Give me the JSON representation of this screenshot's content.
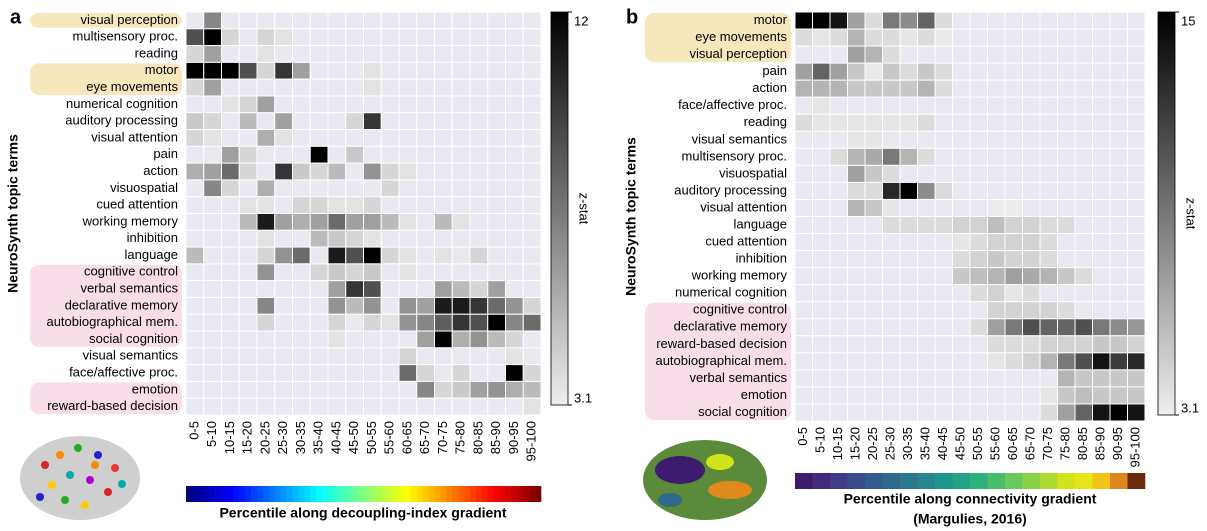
{
  "chart_data": [
    {
      "type": "heatmap",
      "panel": "a",
      "ylabel": "NeuroSynth topic terms",
      "xlabel_lines": [
        "Percentile along decoupling-index gradient"
      ],
      "categories": [
        "0-5",
        "5-10",
        "10-15",
        "15-20",
        "20-25",
        "25-30",
        "30-35",
        "35-40",
        "40-45",
        "45-50",
        "50-55",
        "55-60",
        "60-65",
        "65-70",
        "70-75",
        "75-80",
        "80-85",
        "85-90",
        "90-95",
        "95-100"
      ],
      "rows": [
        "visual perception",
        "multisensory proc.",
        "reading",
        "motor",
        "eye movements",
        "numerical cognition",
        "auditory processing",
        "visual attention",
        "pain",
        "action",
        "visuospatial",
        "cued attention",
        "working memory",
        "inhibition",
        "language",
        "cognitive control",
        "verbal semantics",
        "declarative memory",
        "autobiographical mem.",
        "social cognition",
        "visual semantics",
        "face/affective proc.",
        "emotion",
        "reward-based decision"
      ],
      "values": [
        [
          null,
          7,
          null,
          null,
          null,
          null,
          null,
          null,
          null,
          null,
          null,
          null,
          null,
          null,
          null,
          null,
          null,
          null,
          null,
          null
        ],
        [
          9,
          12,
          4,
          null,
          4,
          3.5,
          null,
          null,
          null,
          null,
          null,
          null,
          null,
          null,
          null,
          null,
          null,
          null,
          null,
          null
        ],
        [
          4,
          6,
          null,
          null,
          3.5,
          null,
          null,
          null,
          null,
          null,
          null,
          null,
          null,
          null,
          null,
          null,
          null,
          null,
          null,
          null
        ],
        [
          12,
          12,
          12,
          9,
          4,
          10,
          6,
          null,
          null,
          null,
          3.5,
          null,
          null,
          null,
          null,
          null,
          null,
          null,
          null,
          null
        ],
        [
          4,
          6,
          null,
          null,
          null,
          null,
          null,
          null,
          null,
          null,
          3.5,
          null,
          null,
          null,
          null,
          null,
          null,
          null,
          null,
          null
        ],
        [
          null,
          null,
          3.5,
          4,
          6,
          null,
          null,
          null,
          null,
          null,
          null,
          null,
          null,
          null,
          null,
          null,
          null,
          null,
          null,
          null
        ],
        [
          4.5,
          4,
          null,
          5,
          null,
          6,
          null,
          null,
          null,
          4,
          10,
          null,
          null,
          null,
          null,
          null,
          null,
          null,
          null,
          null
        ],
        [
          4,
          3.5,
          null,
          null,
          5.5,
          3.5,
          null,
          null,
          null,
          null,
          null,
          null,
          null,
          null,
          null,
          null,
          null,
          null,
          null,
          null
        ],
        [
          null,
          null,
          6,
          4,
          null,
          null,
          null,
          12,
          null,
          4.5,
          null,
          null,
          null,
          null,
          null,
          null,
          null,
          null,
          null,
          null
        ],
        [
          5.5,
          6,
          8,
          4,
          null,
          10,
          4.5,
          4,
          5,
          null,
          6.5,
          4,
          3.5,
          null,
          null,
          null,
          null,
          null,
          null,
          null
        ],
        [
          null,
          7,
          4,
          null,
          5.5,
          null,
          null,
          null,
          null,
          null,
          null,
          4,
          null,
          null,
          null,
          null,
          null,
          null,
          null,
          null
        ],
        [
          null,
          null,
          null,
          3.5,
          3.5,
          null,
          4,
          4,
          3.5,
          3.5,
          4,
          null,
          null,
          null,
          null,
          null,
          null,
          null,
          null,
          null
        ],
        [
          null,
          null,
          null,
          5,
          11,
          6,
          5.5,
          6,
          8,
          6,
          6,
          5,
          3.5,
          null,
          5,
          3.5,
          null,
          null,
          null,
          null
        ],
        [
          null,
          null,
          null,
          null,
          3.5,
          null,
          null,
          5,
          4.5,
          4,
          3.5,
          null,
          null,
          null,
          null,
          null,
          null,
          null,
          null,
          null
        ],
        [
          5,
          null,
          null,
          null,
          4,
          6.5,
          8,
          null,
          11,
          9,
          12,
          4,
          3.5,
          null,
          3.5,
          null,
          4,
          null,
          null,
          null
        ],
        [
          null,
          null,
          null,
          null,
          6.5,
          null,
          null,
          4,
          4.5,
          4,
          4.5,
          null,
          3.5,
          null,
          null,
          null,
          null,
          null,
          null,
          null
        ],
        [
          null,
          null,
          null,
          null,
          null,
          null,
          null,
          null,
          6,
          10,
          9,
          null,
          null,
          null,
          6,
          5,
          4,
          6,
          null,
          null
        ],
        [
          null,
          null,
          null,
          null,
          7,
          null,
          null,
          null,
          6.5,
          5,
          6.5,
          null,
          6.5,
          6,
          11,
          11,
          10,
          8,
          6.5,
          4
        ],
        [
          null,
          null,
          null,
          null,
          4,
          null,
          null,
          null,
          4,
          null,
          4,
          3.5,
          6.5,
          7,
          8.5,
          10,
          9,
          12,
          7,
          8
        ],
        [
          null,
          null,
          null,
          null,
          null,
          null,
          null,
          null,
          3.5,
          null,
          null,
          null,
          null,
          6,
          12,
          5.5,
          6.5,
          5,
          4,
          null
        ],
        [
          null,
          null,
          null,
          null,
          null,
          null,
          null,
          null,
          null,
          null,
          null,
          null,
          4,
          null,
          null,
          null,
          null,
          null,
          3.5,
          null
        ],
        [
          null,
          null,
          null,
          null,
          null,
          null,
          null,
          null,
          null,
          null,
          null,
          null,
          8,
          4,
          null,
          4,
          null,
          null,
          12,
          4
        ],
        [
          null,
          null,
          null,
          null,
          null,
          null,
          null,
          null,
          null,
          null,
          null,
          null,
          null,
          7,
          4,
          4.5,
          6,
          6.5,
          5.5,
          5
        ],
        [
          null,
          null,
          null,
          null,
          null,
          null,
          null,
          null,
          null,
          null,
          null,
          null,
          null,
          null,
          null,
          null,
          null,
          null,
          null,
          3.5
        ]
      ],
      "colorbar": {
        "label": "z-stat",
        "lim": [
          3.1,
          12
        ],
        "ticks": [
          12,
          3.1
        ]
      },
      "empty_color": "#e9e9f2",
      "gradient": "jet"
    },
    {
      "type": "heatmap",
      "panel": "b",
      "ylabel": "NeuroSynth topic terms",
      "xlabel_lines": [
        "Percentile along connectivity gradient",
        "(Margulies, 2016)"
      ],
      "categories": [
        "0-5",
        "5-10",
        "10-15",
        "15-20",
        "20-25",
        "25-30",
        "30-35",
        "35-40",
        "40-45",
        "45-50",
        "50-55",
        "55-60",
        "60-65",
        "65-70",
        "70-75",
        "75-80",
        "80-85",
        "85-90",
        "90-95",
        "95-100"
      ],
      "rows": [
        "motor",
        "eye movements",
        "visual perception",
        "pain",
        "action",
        "face/affective proc.",
        "reading",
        "visual semantics",
        "multisensory proc.",
        "visuospatial",
        "auditory processing",
        "visual attention",
        "language",
        "cued attention",
        "inhibition",
        "working memory",
        "numerical cognition",
        "cognitive control",
        "declarative memory",
        "reward-based decision",
        "autobiographical mem.",
        "verbal semantics",
        "emotion",
        "social cognition"
      ],
      "values": [
        [
          15,
          15,
          14,
          7,
          4,
          9,
          8,
          10,
          4,
          null,
          null,
          null,
          null,
          null,
          null,
          null,
          null,
          null,
          null,
          null
        ],
        [
          4,
          3.5,
          4,
          6,
          4,
          4,
          3.5,
          4,
          3.3,
          null,
          null,
          null,
          null,
          null,
          null,
          null,
          null,
          null,
          null,
          null
        ],
        [
          null,
          null,
          null,
          7,
          6,
          4,
          null,
          null,
          null,
          null,
          null,
          null,
          null,
          null,
          null,
          null,
          null,
          null,
          null,
          null
        ],
        [
          7,
          10,
          7,
          5,
          3.3,
          5,
          4,
          5,
          4,
          null,
          null,
          null,
          null,
          null,
          null,
          null,
          null,
          null,
          null,
          null
        ],
        [
          6,
          6,
          6,
          5,
          5,
          5,
          5,
          6,
          4,
          null,
          null,
          null,
          null,
          null,
          null,
          null,
          null,
          null,
          null,
          null
        ],
        [
          null,
          3.5,
          null,
          null,
          null,
          null,
          null,
          null,
          null,
          null,
          null,
          null,
          null,
          null,
          null,
          null,
          null,
          null,
          null,
          null
        ],
        [
          4,
          3.5,
          3.5,
          3.5,
          3.5,
          3.5,
          3.5,
          4,
          null,
          null,
          null,
          null,
          null,
          null,
          null,
          null,
          null,
          null,
          null,
          null
        ],
        [
          null,
          null,
          null,
          3.5,
          3.5,
          null,
          null,
          null,
          null,
          null,
          null,
          null,
          null,
          null,
          null,
          null,
          null,
          null,
          null,
          null
        ],
        [
          null,
          null,
          4,
          6,
          6.5,
          9,
          6,
          4,
          null,
          null,
          null,
          null,
          null,
          null,
          null,
          null,
          null,
          null,
          null,
          null
        ],
        [
          null,
          null,
          null,
          7,
          5,
          4,
          null,
          null,
          null,
          null,
          null,
          null,
          null,
          null,
          null,
          null,
          null,
          null,
          null,
          null
        ],
        [
          null,
          null,
          null,
          4,
          4,
          13,
          15,
          8,
          4,
          null,
          null,
          null,
          null,
          null,
          null,
          null,
          null,
          null,
          null,
          null
        ],
        [
          null,
          null,
          null,
          6,
          5,
          3.5,
          null,
          null,
          null,
          null,
          null,
          3.2,
          3.2,
          null,
          null,
          null,
          null,
          null,
          null,
          null
        ],
        [
          null,
          null,
          null,
          null,
          null,
          4,
          4,
          4,
          4,
          4.5,
          4.5,
          5.5,
          4.5,
          4.5,
          4,
          4,
          null,
          null,
          null,
          null
        ],
        [
          null,
          null,
          null,
          null,
          null,
          null,
          null,
          null,
          null,
          3.5,
          4,
          4.5,
          4.5,
          4.5,
          4,
          null,
          null,
          null,
          null,
          null
        ],
        [
          null,
          null,
          null,
          null,
          null,
          null,
          null,
          null,
          null,
          4,
          4.5,
          5,
          4.5,
          4.5,
          4,
          null,
          null,
          null,
          null,
          null
        ],
        [
          null,
          null,
          null,
          null,
          null,
          null,
          null,
          null,
          null,
          5,
          5.5,
          6,
          7,
          6.5,
          6,
          5,
          4,
          null,
          null,
          null
        ],
        [
          null,
          null,
          null,
          null,
          null,
          null,
          null,
          null,
          null,
          null,
          4,
          4.5,
          3.5,
          4,
          null,
          null,
          null,
          null,
          null,
          null
        ],
        [
          null,
          null,
          null,
          null,
          null,
          null,
          null,
          null,
          null,
          null,
          null,
          4.5,
          4.5,
          4.5,
          4.5,
          4,
          null,
          null,
          null,
          null
        ],
        [
          null,
          null,
          null,
          null,
          null,
          null,
          null,
          null,
          null,
          null,
          4,
          7,
          9,
          11,
          10,
          10,
          11,
          9,
          8,
          7.5
        ],
        [
          null,
          null,
          null,
          null,
          null,
          null,
          null,
          null,
          null,
          null,
          null,
          4,
          4,
          4,
          4.5,
          4.5,
          4.5,
          5,
          5,
          4.5
        ],
        [
          null,
          null,
          null,
          null,
          null,
          null,
          null,
          null,
          null,
          null,
          null,
          3.5,
          4,
          4.5,
          6,
          9,
          11,
          14,
          12,
          13
        ],
        [
          null,
          null,
          null,
          null,
          null,
          null,
          null,
          null,
          null,
          null,
          null,
          null,
          null,
          null,
          null,
          6,
          5,
          5,
          5,
          5
        ],
        [
          null,
          null,
          null,
          null,
          null,
          null,
          null,
          null,
          null,
          null,
          null,
          null,
          null,
          null,
          3.5,
          5,
          5.5,
          5,
          5,
          5
        ],
        [
          null,
          null,
          null,
          null,
          null,
          null,
          null,
          null,
          null,
          null,
          null,
          null,
          null,
          null,
          4,
          7,
          10,
          14,
          15,
          14
        ]
      ],
      "colorbar": {
        "label": "z-stat",
        "lim": [
          3.1,
          15
        ],
        "ticks": [
          15,
          3.1
        ]
      },
      "empty_color": "#e9e9f2",
      "gradient": [
        "#3b1c6e",
        "#432a7c",
        "#413b87",
        "#3c4b8c",
        "#355a8d",
        "#2f698d",
        "#2a788e",
        "#25868d",
        "#1f958b",
        "#22a385",
        "#2fb17b",
        "#48be6d",
        "#67c95c",
        "#88d247",
        "#aedb33",
        "#d2e21b",
        "#e8e419",
        "#f0c419",
        "#e0861e",
        "#6b2c0a"
      ]
    }
  ]
}
